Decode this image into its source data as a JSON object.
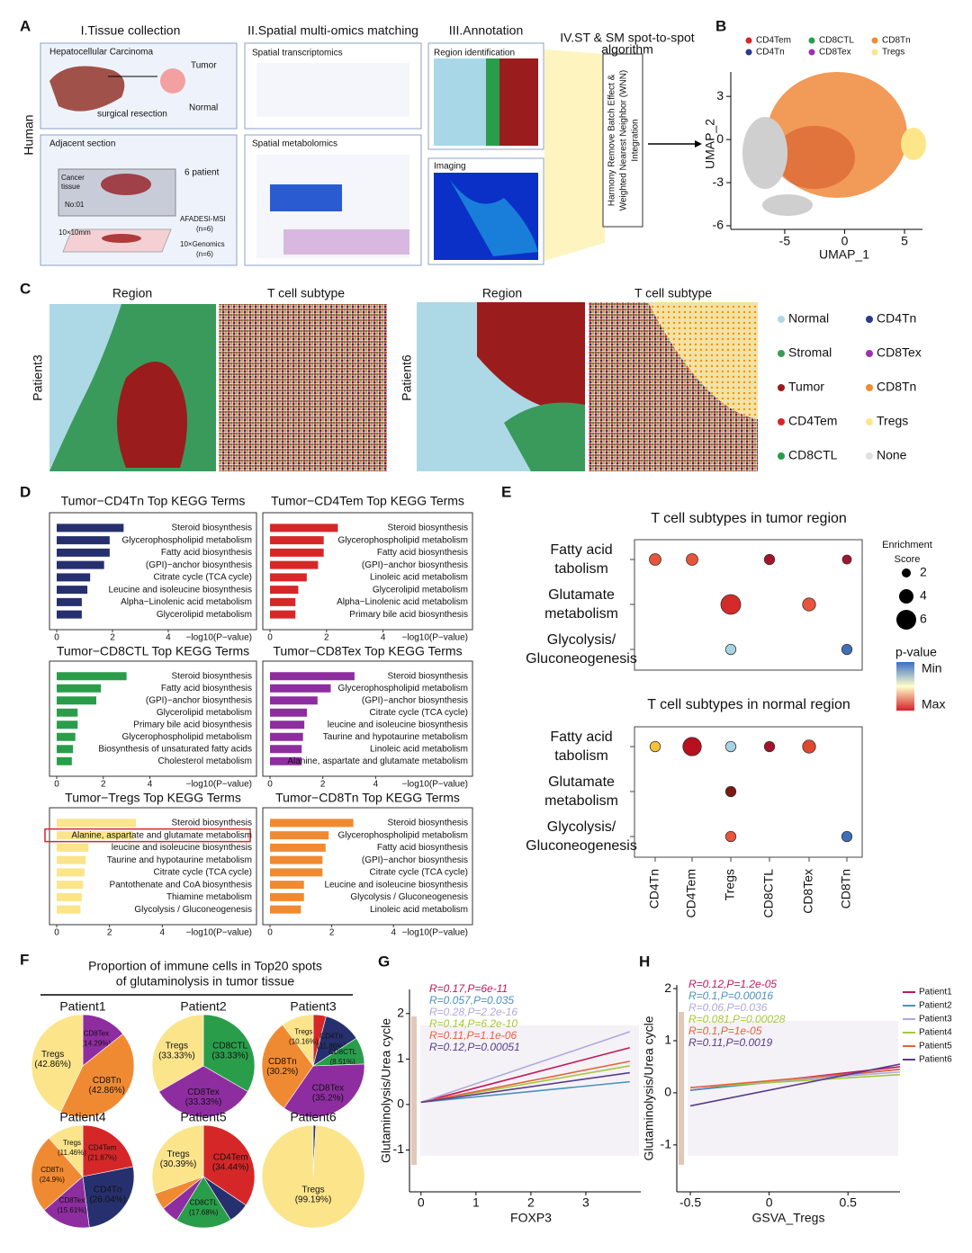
{
  "figure": {
    "A": {
      "letter": "A",
      "side": "Human",
      "col1": "I.Tissue collection",
      "col2": "II.Spatial multi-omics matching",
      "col3": "III.Annotation",
      "col4": [
        "IV.ST & SM spot-to-spot",
        "algorithm"
      ],
      "hcc": "Hepatocellular Carcinoma",
      "tumor": "Tumor",
      "normal": "Normal",
      "resection": "surgical resection",
      "adj": "Adjacent section",
      "cancer": [
        "Cancer",
        "tissue"
      ],
      "no": "No:01",
      "patients": "6 patient",
      "afadesi": "AFADESI-MSI",
      "n1": "(n=6)",
      "size": "10×10mm",
      "genomics": "10×Genomics",
      "n2": "(n=6)",
      "st": "Spatial transcriptomics",
      "sm": "Spatial metabolomics",
      "region": "Region identification",
      "imaging": "Imaging",
      "method": [
        "Harmony Remove Batch Effect &",
        "Weighted Nearest Neighbor (WNN)",
        "Integration"
      ]
    },
    "B": {
      "letter": "B",
      "legend": [
        {
          "name": "CD4Tem",
          "color": "#d62728"
        },
        {
          "name": "CD8CTL",
          "color": "#2a9d4a"
        },
        {
          "name": "CD8Tn",
          "color": "#f28a30"
        },
        {
          "name": "CD4Tn",
          "color": "#2b3a8c"
        },
        {
          "name": "CD8Tex",
          "color": "#9b30b0"
        },
        {
          "name": "Tregs",
          "color": "#fde68a"
        }
      ]
    },
    "C": {
      "letter": "C",
      "titles": [
        "Region",
        "T cell subtype",
        "Region",
        "T cell subtype"
      ],
      "patients": [
        "Patient3",
        "Patient6"
      ],
      "legend": [
        {
          "name": "Normal",
          "color": "#add8e6"
        },
        {
          "name": "Stromal",
          "color": "#3a9a5b"
        },
        {
          "name": "Tumor",
          "color": "#9b1c1c"
        },
        {
          "name": "CD4Tem",
          "color": "#d62728"
        },
        {
          "name": "CD8CTL",
          "color": "#2a9d4a"
        },
        {
          "name": "CD4Tn",
          "color": "#2b3a8c"
        },
        {
          "name": "CD8Tex",
          "color": "#9b30b0"
        },
        {
          "name": "CD8Tn",
          "color": "#f28a30"
        },
        {
          "name": "Tregs",
          "color": "#fde68a"
        },
        {
          "name": "None",
          "color": "#e0e0e0"
        }
      ]
    },
    "D": {
      "letter": "D"
    },
    "E": {
      "letter": "E"
    },
    "F": {
      "letter": "F",
      "title": [
        "Proportion of immune cells in Top20 spots",
        "of glutaminolysis in tumor tissue"
      ]
    },
    "G": {
      "letter": "G"
    },
    "H": {
      "letter": "H"
    }
  },
  "chart_data": [
    {
      "type": "scatter",
      "xlabel": "UMAP_1",
      "ylabel": "UMAP_2",
      "xlim": [
        -9.5,
        6.5
      ],
      "ylim": [
        -6.25,
        4.7
      ],
      "xticks": [
        -5,
        0,
        5
      ],
      "yticks": [
        3,
        0,
        -3,
        -6
      ]
    },
    {
      "type": "barh",
      "title": "Tumor−CD4Tn  Top KEGG Terms",
      "categories": [
        "Steroid biosynthesis",
        "Glycerophospholipid metabolism",
        "Fatty acid biosynthesis",
        "(GPI)−anchor biosynthesis",
        "Citrate cycle (TCA cycle)",
        "Leucine and isoleucine biosynthesis",
        "Alpha−Linolenic acid metabolism",
        "Glycerolipid metabolism"
      ],
      "values": [
        2.4,
        1.9,
        1.9,
        1.7,
        1.2,
        1.1,
        0.9,
        0.9
      ],
      "color": "#27306e",
      "xlim": [
        0,
        7.1
      ],
      "xticks": [
        0,
        2,
        4
      ],
      "xlabel": "−log10(P−value)"
    },
    {
      "type": "barh",
      "title": "Tumor−CD4Tem  Top KEGG Terms",
      "categories": [
        "Steroid biosynthesis",
        "Glycerophospholipid metabolism",
        "Fatty acid biosynthesis",
        "(GPI)−anchor biosynthesis",
        "Linoleic acid metabolism",
        "Glycerolipid metabolism",
        "Alpha−Linolenic acid metabolism",
        "Primary bile acid biosynthesis"
      ],
      "values": [
        2.4,
        1.9,
        1.9,
        1.7,
        1.3,
        1.0,
        0.9,
        0.9
      ],
      "color": "#d62728",
      "xlim": [
        0,
        7.1
      ],
      "xticks": [
        0,
        2,
        4
      ],
      "xlabel": "−log10(P−value)"
    },
    {
      "type": "barh",
      "title": "Tumor−CD8CTL  Top KEGG Terms",
      "categories": [
        "Steroid biosynthesis",
        "Fatty acid biosynthesis",
        "(GPI)−anchor biosynthesis",
        "Glycerolipid metabolism",
        "Primary bile acid biosynthesis",
        "Glycerophospholipid metabolism",
        "Biosynthesis of unsaturated fatty acids",
        "Cholesterol metabolism"
      ],
      "values": [
        3.0,
        1.9,
        1.7,
        0.9,
        0.9,
        0.8,
        0.7,
        0.65
      ],
      "color": "#2a9d4a",
      "xlim": [
        0,
        8.5
      ],
      "xticks": [
        0,
        2,
        4
      ],
      "xlabel": "−log10(P−value)"
    },
    {
      "type": "barh",
      "title": "Tumor−CD8Tex  Top KEGG Terms",
      "categories": [
        "Steroid biosynthesis",
        "Glycerophospholipid metabolism",
        "(GPI)−anchor biosynthesis",
        "Citrate cycle (TCA cycle)",
        "leucine and isoleucine biosynthesis",
        "Taurine and hypotaurine metabolism",
        "Linoleic acid metabolism",
        "Alanine, aspartate and glutamate metabolism"
      ],
      "values": [
        3.2,
        2.3,
        1.8,
        1.4,
        1.3,
        1.25,
        1.2,
        1.2
      ],
      "color": "#8e2da0",
      "xlim": [
        0,
        7.6
      ],
      "xticks": [
        0,
        2,
        4
      ],
      "xlabel": "−log10(P−value)"
    },
    {
      "type": "barh",
      "title": "Tumor−Tregs  Top KEGG Terms",
      "categories": [
        "Steroid biosynthesis",
        "Alanine, aspartate and glutamate metabolism",
        "leucine and isoleucine biosynthesis",
        "Taurine and hypotaurine metabolism",
        "Citrate cycle (TCA cycle)",
        "Pantothenate and CoA biosynthesis",
        "Thiamine metabolism",
        "Glycolysis / Gluconeogenesis"
      ],
      "values": [
        3.0,
        2.9,
        1.2,
        1.1,
        1.05,
        1.0,
        0.95,
        0.9
      ],
      "color": "#fbe48a",
      "xlim": [
        0,
        7.5
      ],
      "xticks": [
        0,
        2,
        4
      ],
      "xlabel": "−log10(P−value)",
      "highlight": 1
    },
    {
      "type": "barh",
      "title": "Tumor−CD8Tn  Top KEGG Terms",
      "categories": [
        "Steroid biosynthesis",
        "Glycerophospholipid metabolism",
        "Fatty acid biosynthesis",
        "(GPI)−anchor biosynthesis",
        "Citrate cycle (TCA cycle)",
        "Leucine and isoleucine biosynthesis",
        "Glycolysis / Gluconeogenesis",
        "Linoleic acid metabolism"
      ],
      "values": [
        2.7,
        1.9,
        1.8,
        1.7,
        1.7,
        1.1,
        1.1,
        1.0
      ],
      "color": "#f08a32",
      "xlim": [
        0,
        6.5
      ],
      "xticks": [
        0,
        2,
        4
      ],
      "xlabel": "−log10(P−value)"
    },
    {
      "type": "dot",
      "title": "T cell subtypes in tumor region",
      "categories": [
        "CD4Tn",
        "CD4Tem",
        "Tregs",
        "CD8CTL",
        "CD8Tex",
        "CD8Tn"
      ],
      "rows": [
        [
          "Fatty acid",
          "tabolism"
        ],
        [
          "Glutamate",
          "metabolism"
        ],
        [
          "Glycolysis/",
          "Gluconeogenesis"
        ]
      ],
      "points": [
        {
          "x": 0,
          "y": 0,
          "size": 3,
          "color": "#e8553a"
        },
        {
          "x": 1,
          "y": 0,
          "size": 3,
          "color": "#e8553a"
        },
        {
          "x": 3,
          "y": 0,
          "size": 2.5,
          "color": "#a3142a"
        },
        {
          "x": 5,
          "y": 0,
          "size": 2,
          "color": "#a3142a"
        },
        {
          "x": 2,
          "y": 1,
          "size": 6,
          "color": "#d42a2a"
        },
        {
          "x": 4,
          "y": 1,
          "size": 3.5,
          "color": "#e8553a"
        },
        {
          "x": 2,
          "y": 2,
          "size": 2.5,
          "color": "#a6d4e4"
        },
        {
          "x": 5,
          "y": 2,
          "size": 2.5,
          "color": "#3e6fb8"
        }
      ],
      "size_legend": {
        "title": [
          "Enrichment",
          "Score"
        ],
        "values": [
          2,
          4,
          6
        ]
      },
      "color_legend": {
        "title": "p-value",
        "labels": [
          "Min",
          "Max"
        ],
        "colors": [
          "#3a6fc4",
          "#ffffcc",
          "#d4222a"
        ]
      }
    },
    {
      "type": "dot",
      "title": "T cell subtypes in normal region",
      "categories": [
        "CD4Tn",
        "CD4Tem",
        "Tregs",
        "CD8CTL",
        "CD8Tex",
        "CD8Tn"
      ],
      "rows": [
        [
          "Fatty acid",
          "tabolism"
        ],
        [
          "Glutamate",
          "metabolism"
        ],
        [
          "Glycolysis/",
          "Gluconeogenesis"
        ]
      ],
      "points": [
        {
          "x": 0,
          "y": 0,
          "size": 2.5,
          "color": "#f7c23a"
        },
        {
          "x": 1,
          "y": 0,
          "size": 5.5,
          "color": "#b8101e"
        },
        {
          "x": 2,
          "y": 0,
          "size": 2.5,
          "color": "#a6d4e4"
        },
        {
          "x": 3,
          "y": 0,
          "size": 2.5,
          "color": "#a3142a"
        },
        {
          "x": 4,
          "y": 0,
          "size": 3.5,
          "color": "#e0482e"
        },
        {
          "x": 2,
          "y": 1,
          "size": 2.5,
          "color": "#7a1a10"
        },
        {
          "x": 2,
          "y": 2,
          "size": 2.5,
          "color": "#e8553a"
        },
        {
          "x": 5,
          "y": 2,
          "size": 2.5,
          "color": "#3e6fb8"
        }
      ]
    },
    {
      "type": "pie",
      "title": "Patient1",
      "categories": [
        "CD8Tex",
        "CD8Tn",
        "Tregs"
      ],
      "values": [
        14.29,
        42.86,
        42.86
      ],
      "value_labels": [
        "(14.29%)",
        "(42.86%)",
        "(42.86%)"
      ],
      "colors": [
        "#8e2da0",
        "#f08a32",
        "#fbe48a"
      ]
    },
    {
      "type": "pie",
      "title": "Patient2",
      "categories": [
        "CD8CTL",
        "CD8Tex",
        "Tregs"
      ],
      "values": [
        33.33,
        33.33,
        33.33
      ],
      "value_labels": [
        "(33.33%)",
        "(33.33%)",
        "(33.33%)"
      ],
      "colors": [
        "#2a9d4a",
        "#8e2da0",
        "#fbe48a"
      ]
    },
    {
      "type": "pie",
      "title": "Patient3",
      "categories": [
        "CD4Tem",
        "CD4Tn",
        "CD8CTL",
        "CD8Tex",
        "CD8Tn",
        "Tregs"
      ],
      "values": [
        4.07,
        11.86,
        8.51,
        35.2,
        30.2,
        10.16
      ],
      "value_labels": [
        null,
        "(11.86%)",
        "(8.51%)",
        "(35.2%)",
        "(30.2%)",
        "(10.16%)"
      ],
      "colors": [
        "#d62728",
        "#27306e",
        "#2a9d4a",
        "#8e2da0",
        "#f08a32",
        "#fbe48a"
      ]
    },
    {
      "type": "pie",
      "title": "Patient4",
      "categories": [
        "CD4Tem",
        "CD4Tn",
        "CD8Tex",
        "CD8Tn",
        "Tregs"
      ],
      "values": [
        21.87,
        26.04,
        15.61,
        24.9,
        11.46
      ],
      "value_labels": [
        "(21.87%)",
        "(26.04%)",
        "(15.61%)",
        "(24.9%)",
        "(11.46%)"
      ],
      "colors": [
        "#d62728",
        "#27306e",
        "#8e2da0",
        "#f08a32",
        "#fbe48a"
      ]
    },
    {
      "type": "pie",
      "title": "Patient5",
      "categories": [
        "CD4Tem",
        "CD4Tn",
        "CD8CTL",
        "CD8Tex",
        "CD8Tn",
        "Tregs"
      ],
      "values": [
        34.44,
        6.63,
        17.68,
        5.52,
        5.34,
        30.39
      ],
      "value_labels": [
        "(34.44%)",
        null,
        "(17.68%)",
        null,
        null,
        "(30.39%)"
      ],
      "colors": [
        "#d62728",
        "#27306e",
        "#2a9d4a",
        "#8e2da0",
        "#f08a32",
        "#fbe48a"
      ]
    },
    {
      "type": "pie",
      "title": "Patient6",
      "categories": [
        "CD4Tn",
        "Tregs"
      ],
      "values": [
        0.81,
        99.19
      ],
      "value_labels": [
        null,
        "(99.19%)"
      ],
      "colors": [
        "#27306e",
        "#fbe48a"
      ]
    },
    {
      "type": "line",
      "xlabel": "FOXP3",
      "ylabel": "Glutaminolysis/Urea cycle",
      "xlim": [
        -0.21,
        4.0
      ],
      "ylim": [
        -1.92,
        2.53
      ],
      "xticks": [
        0,
        1,
        2,
        3
      ],
      "yticks": [
        2,
        1,
        0,
        -1
      ],
      "annotations": [
        {
          "text": "R=0.17,P=6e-11",
          "color": "#c2185b"
        },
        {
          "text": "R=0.057,P=0.035",
          "color": "#4a90c0"
        },
        {
          "text": "R=0.28,P=2.2e-16",
          "color": "#b0a8dc"
        },
        {
          "text": "R=0.14,P=6.2e-10",
          "color": "#a6c83a"
        },
        {
          "text": "R=0.11,P=1.1e-06",
          "color": "#e8603c"
        },
        {
          "text": "R=0.12,P=0.00051",
          "color": "#5a3c8c"
        }
      ],
      "series": [
        {
          "color": "#c2185b",
          "x": [
            0,
            3.8
          ],
          "values": [
            0.05,
            1.25
          ]
        },
        {
          "color": "#4a90c0",
          "x": [
            0,
            3.8
          ],
          "values": [
            0.05,
            0.5
          ]
        },
        {
          "color": "#b0a8dc",
          "x": [
            0,
            3.8
          ],
          "values": [
            0.05,
            1.6
          ]
        },
        {
          "color": "#a6c83a",
          "x": [
            0,
            3.8
          ],
          "values": [
            0.05,
            0.85
          ]
        },
        {
          "color": "#e8603c",
          "x": [
            0,
            3.8
          ],
          "values": [
            0.05,
            0.95
          ]
        },
        {
          "color": "#5a3c8c",
          "x": [
            0,
            3.8
          ],
          "values": [
            0.05,
            0.7
          ]
        }
      ]
    },
    {
      "type": "line",
      "xlabel": "GSVA_Tregs",
      "ylabel": "Glutaminolysis/Urea cycle",
      "xlim": [
        -0.586,
        0.83
      ],
      "ylim": [
        -1.9,
        2.07
      ],
      "xticks": [
        -0.5,
        0.0,
        0.5
      ],
      "yticks": [
        2,
        1,
        0,
        -1
      ],
      "annotations": [
        {
          "text": "R=0.12,P=1.2e-05",
          "color": "#c2185b"
        },
        {
          "text": "R=0.1,P=0.00016",
          "color": "#4a90c0"
        },
        {
          "text": "R=0.06,P=0.036",
          "color": "#b0a8dc"
        },
        {
          "text": "R=0.081,P=0.00028",
          "color": "#a6c83a"
        },
        {
          "text": "R=0.1,P=1e-05",
          "color": "#e8603c"
        },
        {
          "text": "R=0.11,P=0.0019",
          "color": "#5a3c8c"
        }
      ],
      "series": [
        {
          "name": "Patient1",
          "color": "#c2185b",
          "x": [
            -0.5,
            0.83
          ],
          "values": [
            0.05,
            0.5
          ]
        },
        {
          "name": "Patient2",
          "color": "#4a90c0",
          "x": [
            -0.5,
            0.83
          ],
          "values": [
            0.05,
            0.45
          ]
        },
        {
          "name": "Patient3",
          "color": "#b0a8dc",
          "x": [
            -0.5,
            0.83
          ],
          "values": [
            0.1,
            0.4
          ]
        },
        {
          "name": "Patient4",
          "color": "#a6c83a",
          "x": [
            -0.5,
            0.83
          ],
          "values": [
            0.1,
            0.35
          ]
        },
        {
          "name": "Patient5",
          "color": "#e8603c",
          "x": [
            -0.5,
            0.83
          ],
          "values": [
            0.1,
            0.45
          ]
        },
        {
          "name": "Patient6",
          "color": "#5a3c8c",
          "x": [
            -0.5,
            0.83
          ],
          "values": [
            -0.25,
            0.55
          ]
        }
      ]
    }
  ]
}
